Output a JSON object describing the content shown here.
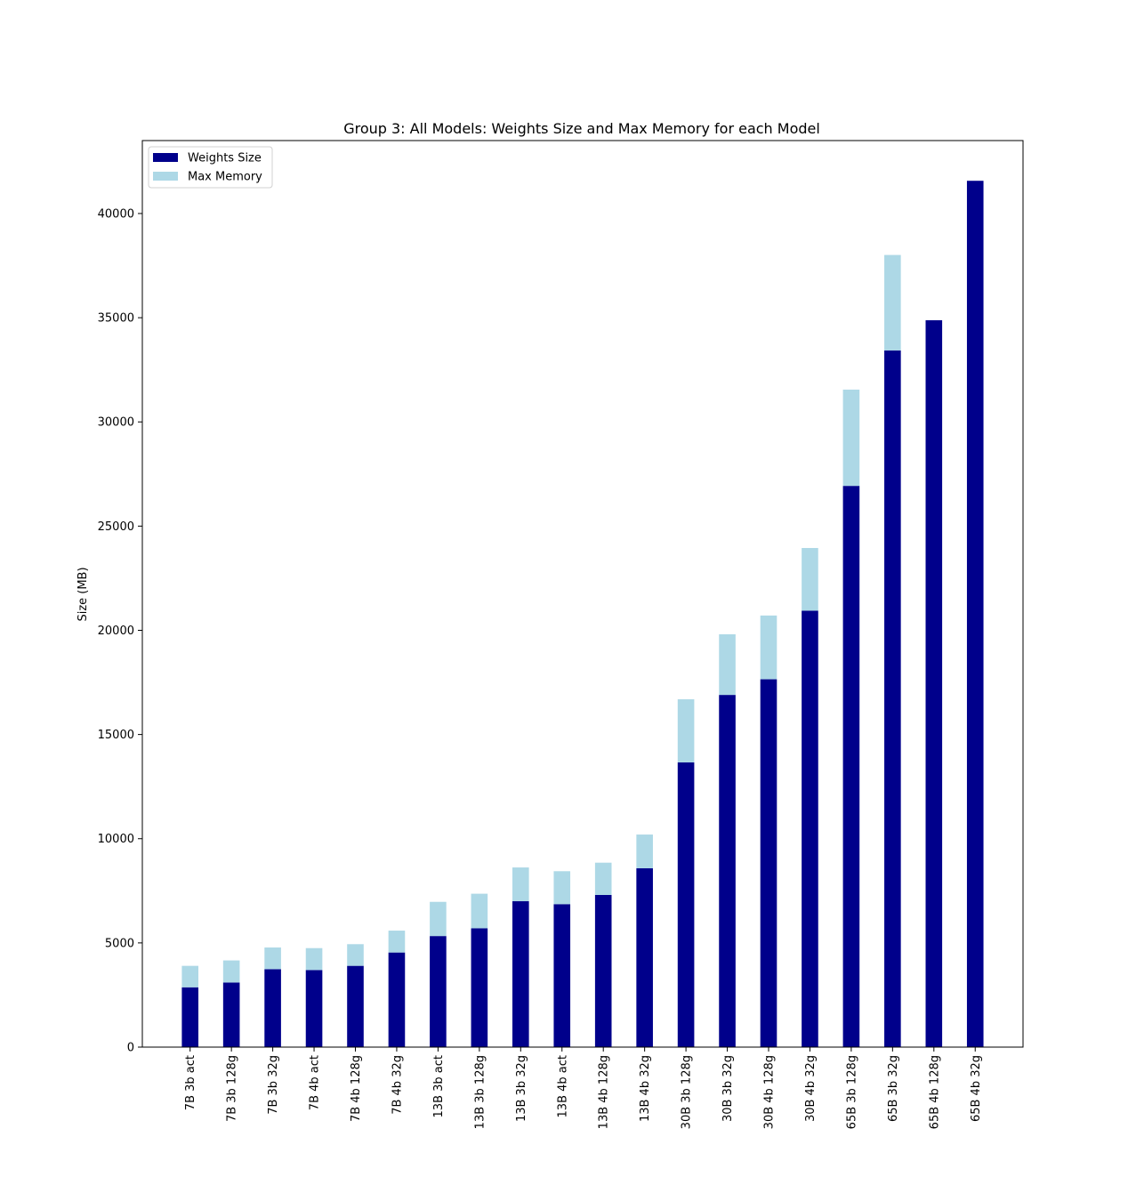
{
  "chart_data": {
    "type": "bar",
    "stacked": true,
    "title": "Group 3: All Models: Weights Size and Max Memory for each Model",
    "xlabel": "",
    "ylabel": "Size (MB)",
    "ylim": [
      0,
      43500
    ],
    "yticks": [
      0,
      5000,
      10000,
      15000,
      20000,
      25000,
      30000,
      35000,
      40000
    ],
    "grid": false,
    "legend_position": "top-left",
    "categories": [
      "7B 3b act",
      "7B 3b 128g",
      "7B 3b 32g",
      "7B 4b act",
      "7B 4b 128g",
      "7B 4b 32g",
      "13B 3b act",
      "13B 3b 128g",
      "13B 3b 32g",
      "13B 4b act",
      "13B 4b 128g",
      "13B 4b 32g",
      "30B 3b 128g",
      "30B 3b 32g",
      "30B 4b 128g",
      "30B 4b 32g",
      "65B 3b 128g",
      "65B 3b 32g",
      "65B 4b 128g",
      "65B 4b 32g"
    ],
    "series": [
      {
        "name": "Weights Size",
        "color": "#00008b",
        "values": [
          2870,
          3100,
          3740,
          3700,
          3900,
          4540,
          5330,
          5700,
          7000,
          6860,
          7300,
          8580,
          13660,
          16900,
          17650,
          20940,
          26930,
          33430,
          34880,
          41570
        ]
      },
      {
        "name": "Max Memory",
        "color": "#add8e6",
        "values": [
          1030,
          1060,
          1040,
          1050,
          1040,
          1050,
          1640,
          1660,
          1620,
          1580,
          1550,
          1620,
          3030,
          2910,
          3060,
          3010,
          4620,
          4580,
          0,
          0
        ]
      }
    ]
  }
}
